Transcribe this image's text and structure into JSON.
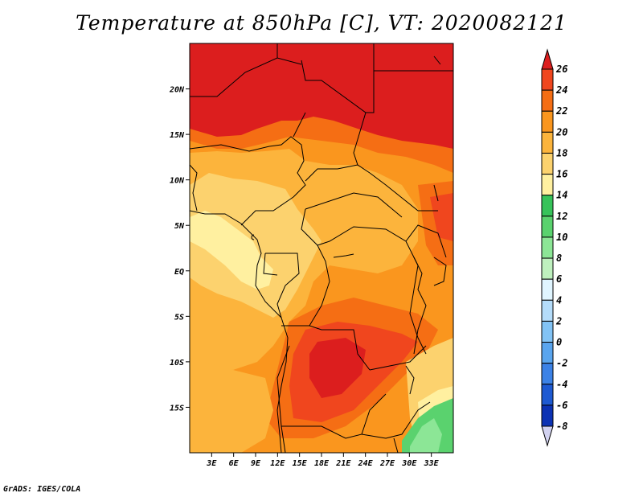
{
  "title": "Temperature at 850hPa [C], VT: 2020082121",
  "credit": "GrADS: IGES/COLA",
  "map": {
    "lon_range": [
      0,
      36
    ],
    "lat_range": [
      -20,
      25
    ],
    "lon_ticks": [
      {
        "value": 3,
        "label": "3E"
      },
      {
        "value": 6,
        "label": "6E"
      },
      {
        "value": 9,
        "label": "9E"
      },
      {
        "value": 12,
        "label": "12E"
      },
      {
        "value": 15,
        "label": "15E"
      },
      {
        "value": 18,
        "label": "18E"
      },
      {
        "value": 21,
        "label": "21E"
      },
      {
        "value": 24,
        "label": "24E"
      },
      {
        "value": 27,
        "label": "27E"
      },
      {
        "value": 30,
        "label": "30E"
      },
      {
        "value": 33,
        "label": "33E"
      }
    ],
    "lat_ticks": [
      {
        "value": 20,
        "label": "20N"
      },
      {
        "value": 15,
        "label": "15N"
      },
      {
        "value": 10,
        "label": "10N"
      },
      {
        "value": 5,
        "label": "5N"
      },
      {
        "value": 0,
        "label": "EQ"
      },
      {
        "value": -5,
        "label": "5S"
      },
      {
        "value": -10,
        "label": "10S"
      },
      {
        "value": -15,
        "label": "15S"
      }
    ]
  },
  "colorbar": {
    "labels": [
      "26",
      "24",
      "22",
      "20",
      "18",
      "16",
      "14",
      "12",
      "10",
      "8",
      "6",
      "4",
      "2",
      "0",
      "-2",
      "-4",
      "-6",
      "-8"
    ],
    "colors": [
      "#dc1e1e",
      "#f0461e",
      "#f56e14",
      "#fa961e",
      "#fcb43c",
      "#fcd26e",
      "#fff0a0",
      "#37c35a",
      "#5ad26e",
      "#8ce696",
      "#bef0be",
      "#e0f5ff",
      "#b4dcfa",
      "#82c3f5",
      "#5aa5ee",
      "#3c82e6",
      "#1e5ad2",
      "#0c32b4",
      "#081e8c"
    ],
    "over_color": "#dc1e1e",
    "under_color": "#d2d2f0"
  }
}
